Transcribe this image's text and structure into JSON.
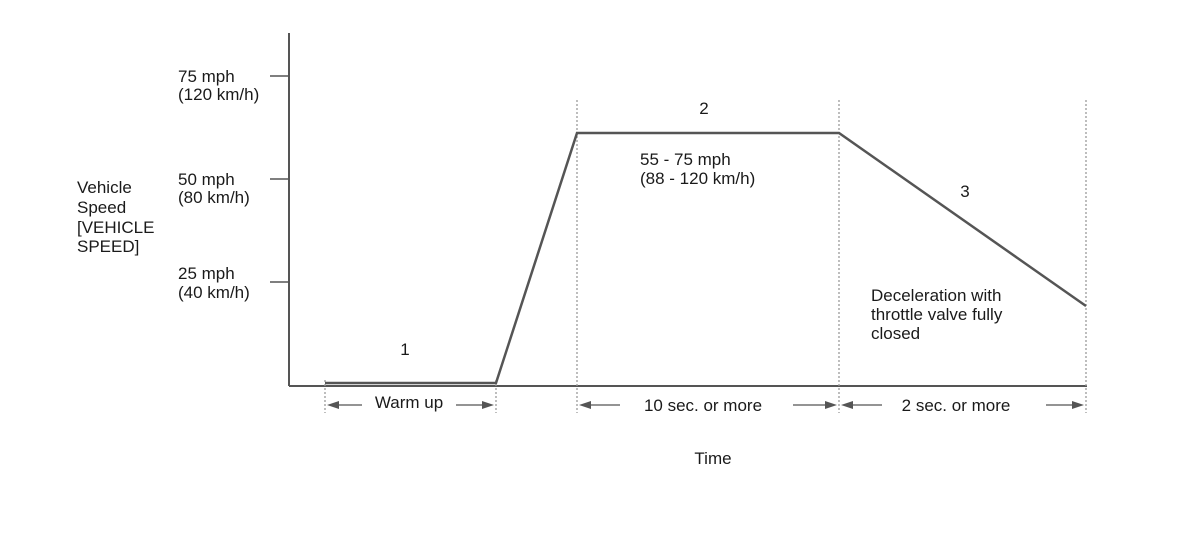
{
  "y_axis": {
    "label_lines": [
      "Vehicle",
      "Speed",
      "[VEHICLE",
      "SPEED]"
    ],
    "ticks": [
      {
        "mph": "75 mph",
        "kmh": "(120 km/h)"
      },
      {
        "mph": "50 mph",
        "kmh": "(80 km/h)"
      },
      {
        "mph": "25 mph",
        "kmh": "(40 km/h)"
      }
    ]
  },
  "x_axis": {
    "label": "Time"
  },
  "phases": [
    {
      "number": "1",
      "duration": "Warm up"
    },
    {
      "number": "2",
      "duration": "10 sec. or more",
      "speed_lines": [
        "55 - 75 mph",
        "(88 - 120 km/h)"
      ]
    },
    {
      "number": "3",
      "duration": "2 sec. or more",
      "note_lines": [
        "Deceleration with",
        "throttle valve fully",
        "closed"
      ]
    }
  ],
  "colors": {
    "line": "#555555",
    "guide": "#9a9a9a",
    "text": "#1a1a1a"
  }
}
